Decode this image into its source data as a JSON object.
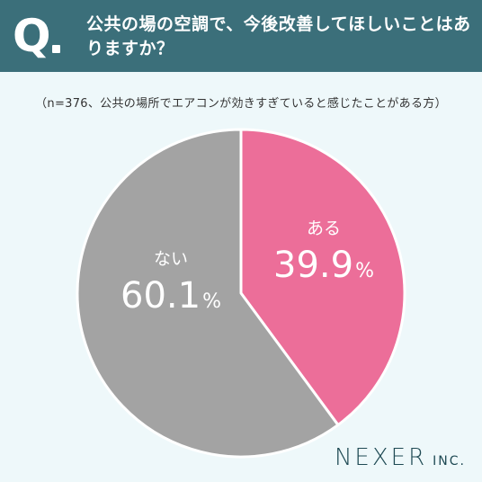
{
  "header": {
    "q_letter": "Q",
    "question": "公共の場の空調で、今後改善してほしいことはありますか？"
  },
  "note": "（n=376、公共の場所でエアコンが効きすぎていると感じたことがある方）",
  "brand": {
    "name": "NEXER",
    "suffix": "INC."
  },
  "colors": {
    "header_bg": "#3b6f7a",
    "aru": "#ec6e99",
    "nai": "#a3a3a3",
    "background": "#eef8fa"
  },
  "chart_data": {
    "type": "pie",
    "slices": [
      {
        "label": "ある",
        "value": 39.9,
        "value_text": "39.9",
        "unit": "%",
        "color": "#ec6e99"
      },
      {
        "label": "ない",
        "value": 60.1,
        "value_text": "60.1",
        "unit": "%",
        "color": "#a3a3a3"
      }
    ],
    "start": "12 o'clock",
    "direction": "clockwise"
  }
}
